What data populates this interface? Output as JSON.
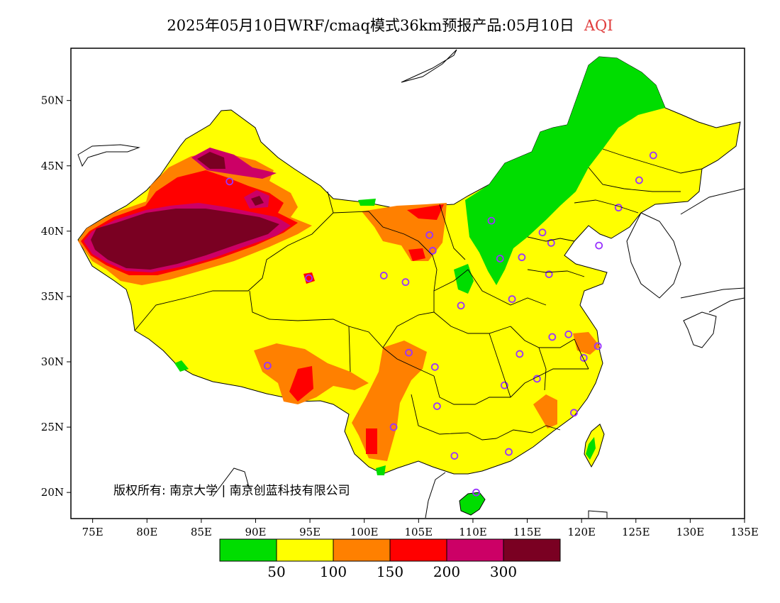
{
  "header": {
    "title": "2025年05月10日WRF/cmaq模式36km预报产品:05月10日",
    "variable": "AQI"
  },
  "map": {
    "lon_range": [
      73,
      135
    ],
    "lat_range": [
      18,
      54
    ],
    "lon_ticks": [
      {
        "value": 75,
        "label": "75E"
      },
      {
        "value": 80,
        "label": "80E"
      },
      {
        "value": 85,
        "label": "85E"
      },
      {
        "value": 90,
        "label": "90E"
      },
      {
        "value": 95,
        "label": "95E"
      },
      {
        "value": 100,
        "label": "100E"
      },
      {
        "value": 105,
        "label": "105E"
      },
      {
        "value": 110,
        "label": "110E"
      },
      {
        "value": 115,
        "label": "115E"
      },
      {
        "value": 120,
        "label": "120E"
      },
      {
        "value": 125,
        "label": "125E"
      },
      {
        "value": 130,
        "label": "130E"
      },
      {
        "value": 135,
        "label": "135E"
      }
    ],
    "lat_ticks": [
      {
        "value": 20,
        "label": "20N"
      },
      {
        "value": 25,
        "label": "25N"
      },
      {
        "value": 30,
        "label": "30N"
      },
      {
        "value": 35,
        "label": "35N"
      },
      {
        "value": 40,
        "label": "40N"
      },
      {
        "value": 45,
        "label": "45N"
      },
      {
        "value": 50,
        "label": "50N"
      }
    ],
    "copyright": "版权所有: 南京大学 | 南京创蓝科技有限公司",
    "colors": {
      "good": "#00dd00",
      "moderate": "#ffff00",
      "sensitive": "#ff8000",
      "unhealthy": "#ff0000",
      "very_unhealthy": "#cc0066",
      "hazardous": "#7a0022",
      "outline": "#000000",
      "city_marker": "#9933ff"
    },
    "cities": [
      {
        "lon": 87.6,
        "lat": 43.8
      },
      {
        "lon": 91.1,
        "lat": 29.7
      },
      {
        "lon": 94.9,
        "lat": 36.4
      },
      {
        "lon": 101.8,
        "lat": 36.6
      },
      {
        "lon": 103.8,
        "lat": 36.1
      },
      {
        "lon": 106.3,
        "lat": 38.5
      },
      {
        "lon": 106.0,
        "lat": 39.7
      },
      {
        "lon": 111.7,
        "lat": 40.8
      },
      {
        "lon": 112.5,
        "lat": 37.9
      },
      {
        "lon": 114.5,
        "lat": 38.0
      },
      {
        "lon": 116.4,
        "lat": 39.9
      },
      {
        "lon": 117.2,
        "lat": 39.1
      },
      {
        "lon": 117.0,
        "lat": 36.7
      },
      {
        "lon": 113.6,
        "lat": 34.8
      },
      {
        "lon": 108.9,
        "lat": 34.3
      },
      {
        "lon": 104.1,
        "lat": 30.7
      },
      {
        "lon": 106.5,
        "lat": 29.6
      },
      {
        "lon": 106.7,
        "lat": 26.6
      },
      {
        "lon": 102.7,
        "lat": 25.0
      },
      {
        "lon": 108.3,
        "lat": 22.8
      },
      {
        "lon": 113.3,
        "lat": 23.1
      },
      {
        "lon": 110.3,
        "lat": 20.0
      },
      {
        "lon": 112.9,
        "lat": 28.2
      },
      {
        "lon": 115.9,
        "lat": 28.7
      },
      {
        "lon": 114.3,
        "lat": 30.6
      },
      {
        "lon": 117.3,
        "lat": 31.9
      },
      {
        "lon": 118.8,
        "lat": 32.1
      },
      {
        "lon": 120.2,
        "lat": 30.3
      },
      {
        "lon": 121.5,
        "lat": 31.2
      },
      {
        "lon": 119.3,
        "lat": 26.1
      },
      {
        "lon": 123.4,
        "lat": 41.8
      },
      {
        "lon": 125.3,
        "lat": 43.9
      },
      {
        "lon": 126.6,
        "lat": 45.8
      },
      {
        "lon": 121.6,
        "lat": 38.9
      }
    ]
  },
  "legend": {
    "colors": [
      "#00dd00",
      "#ffff00",
      "#ff8000",
      "#ff0000",
      "#cc0066",
      "#7a0022"
    ],
    "thresholds": [
      {
        "label": "50",
        "index": 1
      },
      {
        "label": "100",
        "index": 2
      },
      {
        "label": "150",
        "index": 3
      },
      {
        "label": "200",
        "index": 4
      },
      {
        "label": "300",
        "index": 5
      }
    ]
  }
}
